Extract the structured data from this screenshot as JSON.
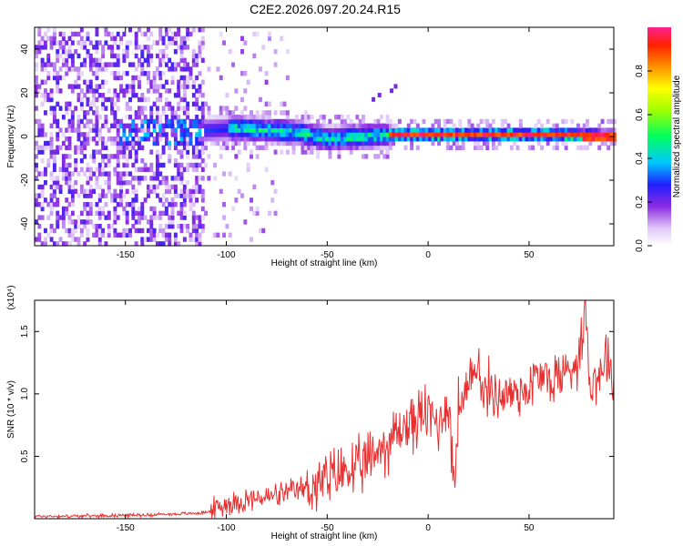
{
  "title": "C2E2.2026.097.20.24.R15",
  "chart_data": [
    {
      "type": "heatmap",
      "xlabel": "Height of straight line (km)",
      "ylabel": "Frequency (Hz)",
      "xlim": [
        -195,
        92
      ],
      "ylim": [
        -50,
        50
      ],
      "xticks": [
        -150,
        -100,
        -50,
        0,
        50
      ],
      "yticks": [
        -40,
        -20,
        0,
        20,
        40
      ],
      "colorbar": {
        "label": "Normalized spectral amplitude",
        "range": [
          0.0,
          1.0
        ],
        "ticks": [
          0.0,
          0.2,
          0.4,
          0.6,
          0.8
        ]
      },
      "ridge": [
        {
          "x": -150,
          "y": 0
        },
        {
          "x": -130,
          "y": 1
        },
        {
          "x": -110,
          "y": 2
        },
        {
          "x": -95,
          "y": 3
        },
        {
          "x": -80,
          "y": 2
        },
        {
          "x": -65,
          "y": 1
        },
        {
          "x": -50,
          "y": -2
        },
        {
          "x": -35,
          "y": -1
        },
        {
          "x": -20,
          "y": 0
        },
        {
          "x": 0,
          "y": 0
        },
        {
          "x": 20,
          "y": 0
        },
        {
          "x": 40,
          "y": 0
        },
        {
          "x": 60,
          "y": 0
        },
        {
          "x": 92,
          "y": -1
        }
      ]
    },
    {
      "type": "line",
      "xlabel": "Height of straight line (km)",
      "ylabel": "SNR (10 * v/v)",
      "y_multiplier": "(x10⁴)",
      "xlim": [
        -195,
        92
      ],
      "ylim": [
        0,
        1.75
      ],
      "xticks": [
        -150,
        -100,
        -50,
        0,
        50
      ],
      "yticks": [
        0.5,
        1.0,
        1.5
      ],
      "color": "#e83030",
      "series": [
        {
          "x": [
            -195,
            -180,
            -160,
            -140,
            -120,
            -110,
            -105,
            -100,
            -90,
            -80,
            -70,
            -60,
            -50,
            -45,
            -40,
            -35,
            -30,
            -25,
            -20,
            -15,
            -10,
            -5,
            0,
            5,
            10,
            13,
            15,
            20,
            25,
            27,
            30,
            35,
            40,
            45,
            50,
            55,
            60,
            65,
            70,
            75,
            78,
            80,
            85,
            88,
            92
          ],
          "y": [
            0.02,
            0.02,
            0.025,
            0.03,
            0.04,
            0.05,
            0.08,
            0.12,
            0.15,
            0.17,
            0.2,
            0.25,
            0.3,
            0.35,
            0.4,
            0.38,
            0.45,
            0.55,
            0.6,
            0.7,
            0.75,
            0.8,
            0.85,
            0.75,
            0.95,
            0.25,
            0.9,
            1.0,
            1.33,
            0.95,
            1.05,
            0.98,
            1.0,
            1.02,
            1.05,
            1.15,
            1.1,
            1.15,
            1.2,
            1.3,
            1.75,
            1.1,
            1.15,
            1.35,
            1.1
          ]
        }
      ]
    }
  ]
}
